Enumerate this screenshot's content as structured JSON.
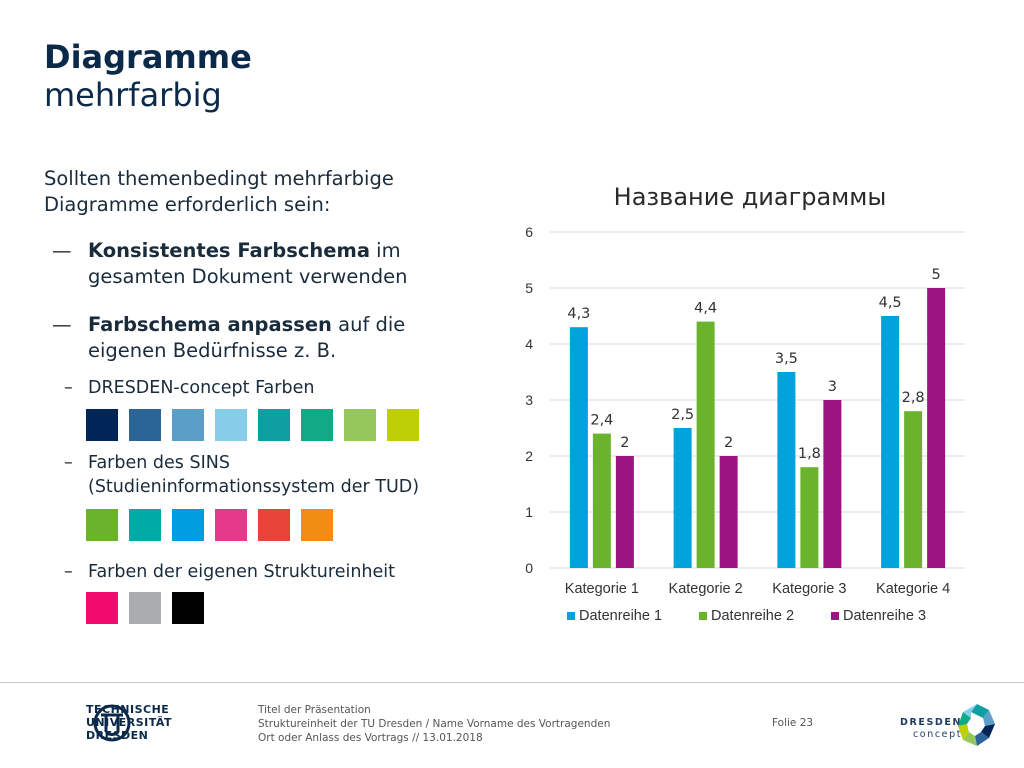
{
  "title": {
    "bold": "Diagramme",
    "normal": "mehrfarbig"
  },
  "intro": "Sollten themenbedingt mehrfarbige Diagramme erforderlich sein:",
  "bullets": [
    {
      "dash": "—",
      "bold": "Konsistentes Farbschema",
      "rest": " im gesamten Dokument verwenden"
    },
    {
      "dash": "—",
      "bold": "Farbschema anpassen",
      "rest": " auf die eigenen Bedürfnisse z. B."
    }
  ],
  "subbullets": [
    {
      "dash": "–",
      "text": "DRESDEN-concept Farben",
      "colors": [
        "#002557",
        "#2b6496",
        "#5b9ec8",
        "#87cde8",
        "#0f9fa3",
        "#12a985",
        "#93c65b",
        "#bfcf05"
      ]
    },
    {
      "dash": "–",
      "text": "Farben des SINS (Studieninformationssystem der TUD)",
      "colors": [
        "#6ab42d",
        "#00aaa6",
        "#009ee0",
        "#e5398c",
        "#e9443a",
        "#f28d14"
      ]
    },
    {
      "dash": "–",
      "text": "Farben der eigenen Struktureinheit",
      "colors": [
        "#f20a6e",
        "#a9adb0",
        "#000000"
      ]
    }
  ],
  "chart_data": {
    "type": "bar",
    "title": "Название диаграммы",
    "categories": [
      "Kategorie 1",
      "Kategorie 2",
      "Kategorie 3",
      "Kategorie 4"
    ],
    "series": [
      {
        "name": "Datenreihe 1",
        "color": "#00a2db",
        "values": [
          4.3,
          2.5,
          3.5,
          4.5
        ],
        "labels": [
          "4,3",
          "2,5",
          "3,5",
          "4,5"
        ]
      },
      {
        "name": "Datenreihe 2",
        "color": "#6ab42d",
        "values": [
          2.4,
          4.4,
          1.8,
          2.8
        ],
        "labels": [
          "2,4",
          "4,4",
          "1,8",
          "2,8"
        ]
      },
      {
        "name": "Datenreihe 3",
        "color": "#9a1482",
        "values": [
          2,
          2,
          3,
          5
        ],
        "labels": [
          "2",
          "2",
          "3",
          "5"
        ]
      }
    ],
    "ylim": [
      0,
      6
    ],
    "yticks": [
      "0",
      "1",
      "2",
      "3",
      "4",
      "5",
      "6"
    ],
    "grid": true,
    "legend": "bottom"
  },
  "footer": {
    "logo_lines": [
      "TECHNISCHE",
      "UNIVERSITÄT",
      "DRESDEN"
    ],
    "info_lines": [
      "Titel der Präsentation",
      "Struktureinheit der TU Dresden / Name Vorname des Vortragenden",
      "Ort oder Anlass des Vortrags // 13.01.2018"
    ],
    "folie": "Folie 23",
    "dc_lines": [
      "DRESDEN",
      "concept"
    ]
  }
}
